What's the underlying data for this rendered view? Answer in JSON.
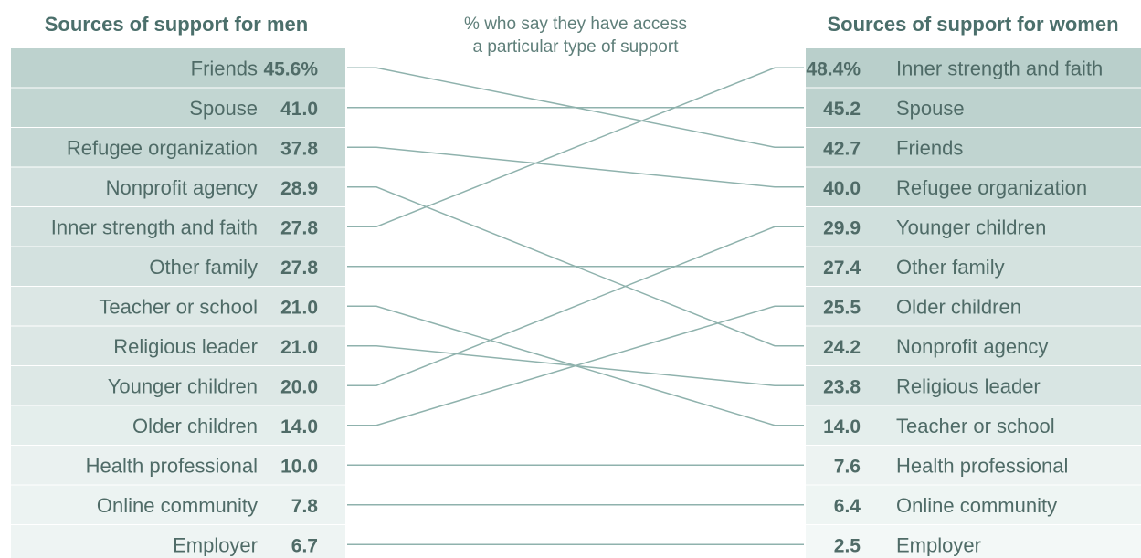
{
  "chart_data": {
    "type": "slope",
    "subtitle_lines": [
      "% who say they have access",
      "a particular type of support"
    ],
    "men": {
      "title": "Sources of support for men",
      "items": [
        {
          "label": "Friends",
          "value": 45.6,
          "display": "45.6%"
        },
        {
          "label": "Spouse",
          "value": 41.0,
          "display": "41.0"
        },
        {
          "label": "Refugee organization",
          "value": 37.8,
          "display": "37.8"
        },
        {
          "label": "Nonprofit agency",
          "value": 28.9,
          "display": "28.9"
        },
        {
          "label": "Inner strength and faith",
          "value": 27.8,
          "display": "27.8"
        },
        {
          "label": "Other family",
          "value": 27.8,
          "display": "27.8"
        },
        {
          "label": "Teacher or school",
          "value": 21.0,
          "display": "21.0"
        },
        {
          "label": "Religious leader",
          "value": 21.0,
          "display": "21.0"
        },
        {
          "label": "Younger children",
          "value": 20.0,
          "display": "20.0"
        },
        {
          "label": "Older children",
          "value": 14.0,
          "display": "14.0"
        },
        {
          "label": "Health professional",
          "value": 10.0,
          "display": "10.0"
        },
        {
          "label": "Online community",
          "value": 7.8,
          "display": "7.8"
        },
        {
          "label": "Employer",
          "value": 6.7,
          "display": "6.7"
        }
      ]
    },
    "women": {
      "title": "Sources of support for women",
      "items": [
        {
          "label": "Inner strength and faith",
          "value": 48.4,
          "display": "48.4%"
        },
        {
          "label": "Spouse",
          "value": 45.2,
          "display": "45.2"
        },
        {
          "label": "Friends",
          "value": 42.7,
          "display": "42.7"
        },
        {
          "label": "Refugee organization",
          "value": 40.0,
          "display": "40.0"
        },
        {
          "label": "Younger children",
          "value": 29.9,
          "display": "29.9"
        },
        {
          "label": "Other family",
          "value": 27.4,
          "display": "27.4"
        },
        {
          "label": "Older children",
          "value": 25.5,
          "display": "25.5"
        },
        {
          "label": "Nonprofit agency",
          "value": 24.2,
          "display": "24.2"
        },
        {
          "label": "Religious leader",
          "value": 23.8,
          "display": "23.8"
        },
        {
          "label": "Teacher or school",
          "value": 14.0,
          "display": "14.0"
        },
        {
          "label": "Health professional",
          "value": 7.6,
          "display": "7.6"
        },
        {
          "label": "Online community",
          "value": 6.4,
          "display": "6.4"
        },
        {
          "label": "Employer",
          "value": 2.5,
          "display": "2.5"
        }
      ]
    },
    "colors": {
      "shade_max": "#b9cfcb",
      "shade_min": "#f3f8f7",
      "line": "#8fb2ad",
      "text": "#4f6b67",
      "title": "#4b6f6b"
    }
  }
}
